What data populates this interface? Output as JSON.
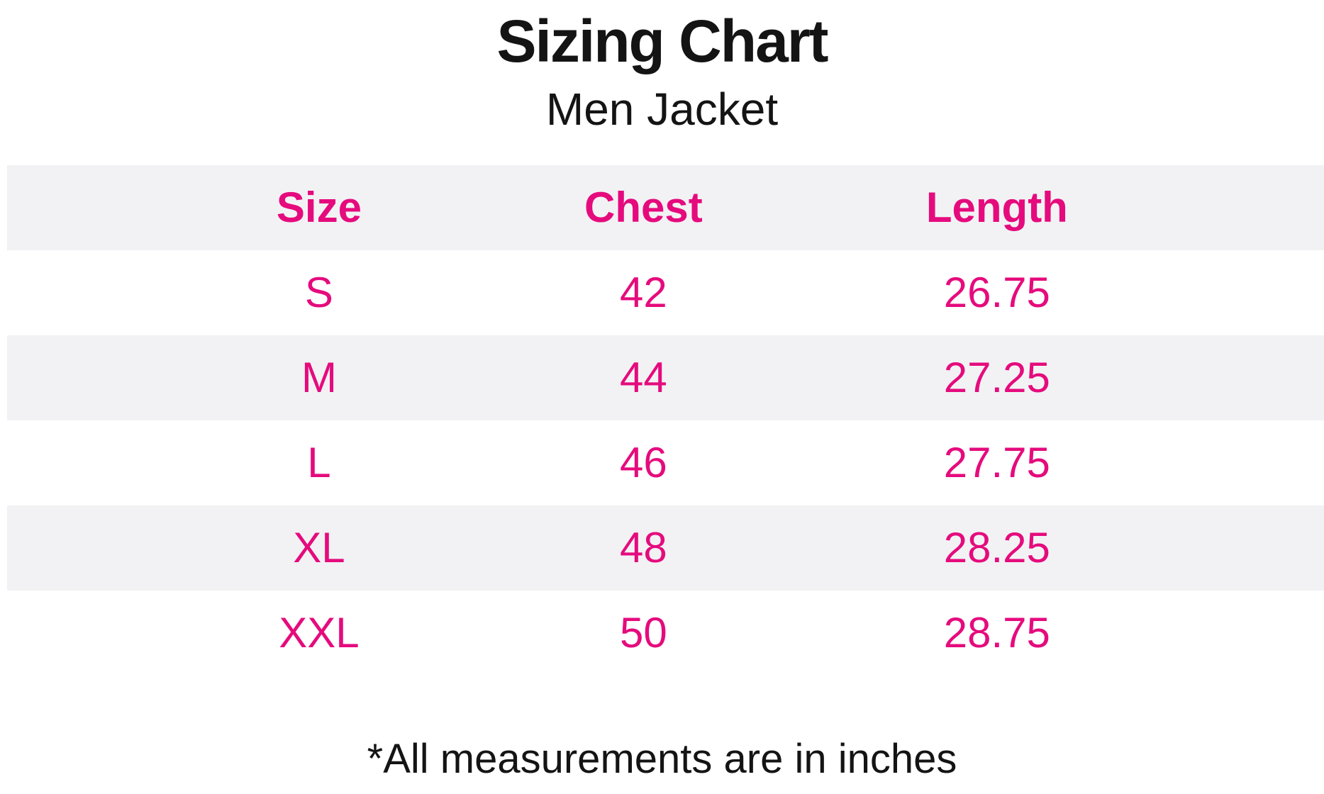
{
  "chart_data": {
    "type": "table",
    "title": "Sizing Chart",
    "subtitle": "Men Jacket",
    "columns": [
      "Size",
      "Chest",
      "Length"
    ],
    "rows": [
      [
        "S",
        42,
        26.75
      ],
      [
        "M",
        44,
        27.25
      ],
      [
        "L",
        46,
        27.75
      ],
      [
        "XL",
        48,
        28.25
      ],
      [
        "XXL",
        50,
        28.75
      ]
    ],
    "note": "*All measurements are in inches",
    "units": "inches",
    "layout": {
      "striped_rows": "header, M, XL",
      "legend": "none",
      "grid": "off"
    }
  },
  "colors": {
    "accent_pink": "#e50b7d",
    "row_stripe_gray": "#f2f2f4",
    "text_black": "#141414",
    "background": "#ffffff"
  }
}
